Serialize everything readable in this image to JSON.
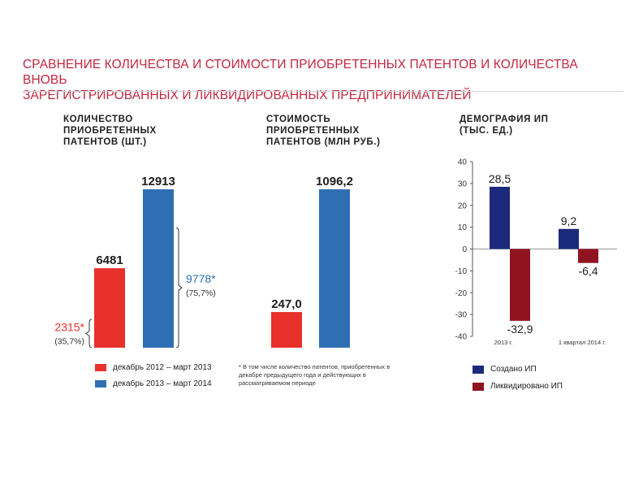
{
  "title_line1": "СРАВНЕНИЕ КОЛИЧЕСТВА И СТОИМОСТИ ПРИОБРЕТЕННЫХ ПАТЕНТОВ И КОЛИЧЕСТВА ВНОВЬ",
  "title_line2": "ЗАРЕГИСТРИРОВАННЫХ И ЛИКВИДИРОВАННЫХ ПРЕДПРИНИМАТЕЛЕЙ",
  "colors": {
    "red": "#e8312a",
    "blue": "#2e6fb4",
    "navy": "#1c2a7d",
    "darkred": "#8f1420",
    "title": "#c0283f"
  },
  "footnote": "* В том числе количество патентов, приобретенных в декабре предыдущего года и действующих в рассматриваемом периоде",
  "legend_left": [
    {
      "label": "декабрь 2012 – март 2013",
      "color": "#e8312a"
    },
    {
      "label": "декабрь 2013 – март 2014",
      "color": "#2e6fb4"
    }
  ],
  "legend_right": [
    {
      "label": "Создано ИП",
      "color": "#1c2a7d"
    },
    {
      "label": "Ликвидировано ИП",
      "color": "#8f1420"
    }
  ],
  "chart_data": [
    {
      "type": "bar",
      "title_lines": [
        "КОЛИЧЕСТВО",
        "ПРИОБРЕТЕННЫХ",
        "ПАТЕНТОВ (ШТ.)"
      ],
      "categories": [
        "декабрь 2012 – март 2013",
        "декабрь 2013 – март 2014"
      ],
      "values": [
        6481,
        12913
      ],
      "value_labels": [
        "6481",
        "12913"
      ],
      "annotations": [
        {
          "bar": 0,
          "value": 2315,
          "label": "2315*",
          "sublabel": "(35,7%)",
          "color": "#e8312a"
        },
        {
          "bar": 1,
          "value": 9778,
          "label": "9778*",
          "sublabel": "(75,7%)",
          "color": "#2e6fb4"
        }
      ]
    },
    {
      "type": "bar",
      "title_lines": [
        "СТОИМОСТЬ",
        "ПРИОБРЕТЕННЫХ",
        "ПАТЕНТОВ (МЛН РУБ.)"
      ],
      "categories": [
        "декабрь 2012 – март 2013",
        "декабрь 2013 – март 2014"
      ],
      "values": [
        247.0,
        1096.2
      ],
      "value_labels": [
        "247,0",
        "1096,2"
      ]
    },
    {
      "type": "bar",
      "title_lines": [
        "ДЕМОГРАФИЯ ИП",
        "(ТЫС. ЕД.)"
      ],
      "categories": [
        "2013 г.",
        "1 квартал 2014 г."
      ],
      "series": [
        {
          "name": "Создано ИП",
          "values": [
            28.5,
            9.2
          ],
          "labels": [
            "28,5",
            "9,2"
          ]
        },
        {
          "name": "Ликвидировано ИП",
          "values": [
            -32.9,
            -6.4
          ],
          "labels": [
            "-32,9",
            "-6,4"
          ]
        }
      ],
      "ylim": [
        -40,
        40
      ],
      "yticks": [
        40,
        30,
        20,
        10,
        0,
        -10,
        -20,
        -30,
        -40
      ]
    }
  ]
}
